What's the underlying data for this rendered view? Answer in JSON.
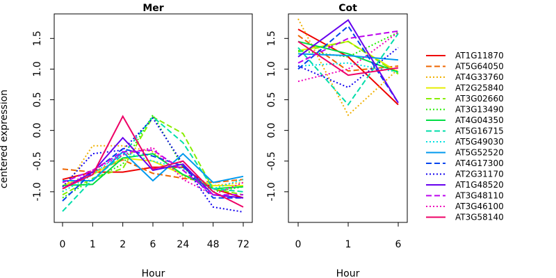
{
  "chart_data": {
    "type": "line",
    "ylabel": "centered expression",
    "grid": false,
    "legend_placement": "right",
    "legend": [
      {
        "name": "AT1G11870",
        "color": "#ee0000",
        "dash": "solid"
      },
      {
        "name": "AT5G64050",
        "color": "#ee6600",
        "dash": "dashed"
      },
      {
        "name": "AT4G33760",
        "color": "#f0b000",
        "dash": "dotted"
      },
      {
        "name": "AT2G25840",
        "color": "#e6ee00",
        "dash": "solid"
      },
      {
        "name": "AT3G02660",
        "color": "#88ee00",
        "dash": "dashed"
      },
      {
        "name": "AT3G13490",
        "color": "#22ee00",
        "dash": "dotted"
      },
      {
        "name": "AT4G04350",
        "color": "#00dd44",
        "dash": "solid"
      },
      {
        "name": "AT5G16715",
        "color": "#00ddaa",
        "dash": "dashed"
      },
      {
        "name": "AT5G49030",
        "color": "#00e0e0",
        "dash": "dotted"
      },
      {
        "name": "AT5G52520",
        "color": "#0099ee",
        "dash": "solid"
      },
      {
        "name": "AT4G17300",
        "color": "#0044ee",
        "dash": "dashed"
      },
      {
        "name": "AT2G31170",
        "color": "#1100ee",
        "dash": "dotted"
      },
      {
        "name": "AT1G48520",
        "color": "#6600ee",
        "dash": "solid"
      },
      {
        "name": "AT3G48110",
        "color": "#bb00ee",
        "dash": "dashed"
      },
      {
        "name": "AT3G46100",
        "color": "#ee00bb",
        "dash": "dotted"
      },
      {
        "name": "AT3G58140",
        "color": "#ee0066",
        "dash": "solid"
      }
    ],
    "panels": [
      {
        "title": "Mer",
        "xlabel": "Hour",
        "x_tick_labels": [
          "0",
          "1",
          "2",
          "6",
          "24",
          "48",
          "72"
        ],
        "ylim": [
          -1.5,
          1.9
        ],
        "y_ticks": [
          "-1.0",
          "-0.5",
          "0.0",
          "0.5",
          "1.0",
          "1.5"
        ],
        "show_y_ticks": true,
        "series": [
          [
            -0.8,
            -0.68,
            -0.68,
            -0.6,
            -0.6,
            -0.95,
            -1.1
          ],
          [
            -0.63,
            -0.68,
            -0.48,
            -0.7,
            -0.78,
            -0.85,
            -0.8
          ],
          [
            -1.0,
            -0.25,
            -0.25,
            -0.35,
            -0.75,
            -0.9,
            -0.85
          ],
          [
            -0.9,
            -0.72,
            -0.45,
            -0.5,
            -0.72,
            -0.9,
            -0.9
          ],
          [
            -1.05,
            -0.78,
            -0.62,
            0.22,
            -0.05,
            -0.95,
            -1.05
          ],
          [
            -1.1,
            -0.8,
            -0.55,
            0.25,
            -0.6,
            -1.0,
            -0.92
          ],
          [
            -0.9,
            -0.88,
            -0.45,
            -0.38,
            -0.72,
            -0.95,
            -0.92
          ],
          [
            -1.32,
            -0.8,
            -0.4,
            0.22,
            -0.2,
            -0.95,
            -1.0
          ],
          [
            -1.0,
            -0.72,
            -0.35,
            -0.5,
            -0.62,
            -0.95,
            -0.8
          ],
          [
            -0.82,
            -0.82,
            -0.35,
            -0.82,
            -0.38,
            -0.85,
            -0.75
          ],
          [
            -1.15,
            -0.68,
            -0.3,
            -0.42,
            -0.58,
            -1.1,
            -1.1
          ],
          [
            -0.92,
            -0.38,
            -0.32,
            0.2,
            -0.55,
            -1.25,
            -1.33
          ],
          [
            -0.95,
            -0.68,
            -0.12,
            -0.65,
            -0.55,
            -1.05,
            -1.1
          ],
          [
            -0.85,
            -0.65,
            -0.35,
            -0.32,
            -0.65,
            -1.05,
            -1.05
          ],
          [
            -0.95,
            -0.65,
            -0.4,
            -0.28,
            -0.8,
            -1.05,
            -0.85
          ],
          [
            -0.95,
            -0.72,
            0.23,
            -0.63,
            -0.5,
            -1.0,
            -1.25
          ]
        ]
      },
      {
        "title": "Cot",
        "xlabel": "Hour",
        "x_tick_labels": [
          "0",
          "1",
          "6"
        ],
        "ylim": [
          -1.5,
          1.9
        ],
        "y_ticks": [
          "-1.0",
          "-0.5",
          "0.0",
          "0.5",
          "1.0",
          "1.5"
        ],
        "show_y_ticks": true,
        "series": [
          [
            1.65,
            1.2,
            0.42
          ],
          [
            1.55,
            0.97,
            1.05
          ],
          [
            1.82,
            0.25,
            1.0
          ],
          [
            1.3,
            1.45,
            0.95
          ],
          [
            1.28,
            1.45,
            0.92
          ],
          [
            1.3,
            1.2,
            1.6
          ],
          [
            1.45,
            1.25,
            0.95
          ],
          [
            1.35,
            0.42,
            1.58
          ],
          [
            1.05,
            1.1,
            0.95
          ],
          [
            1.25,
            1.22,
            1.15
          ],
          [
            1.0,
            1.7,
            0.45
          ],
          [
            1.05,
            0.7,
            1.35
          ],
          [
            1.2,
            1.8,
            0.45
          ],
          [
            1.1,
            1.5,
            1.62
          ],
          [
            0.8,
            1.0,
            1.6
          ],
          [
            1.45,
            0.9,
            1.02
          ]
        ]
      }
    ]
  }
}
